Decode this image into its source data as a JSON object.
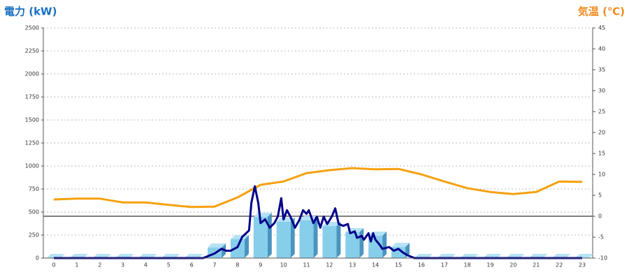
{
  "chart_data": {
    "type": "bar",
    "y_label": "電力 (kW)",
    "y2_label": "気温 (℃)",
    "y_label_color": "#1a6fc0",
    "y2_label_color": "#f08a1c",
    "categories": [
      "0",
      "1",
      "2",
      "3",
      "4",
      "5",
      "6",
      "7",
      "8",
      "9",
      "10",
      "11",
      "12",
      "13",
      "14",
      "15",
      "16",
      "17",
      "18",
      "19",
      "20",
      "21",
      "22",
      "23"
    ],
    "ylim": [
      0,
      2500
    ],
    "yticks": [
      0,
      250,
      500,
      750,
      1000,
      1250,
      1500,
      1750,
      2000,
      2250,
      2500
    ],
    "y2lim": [
      -10,
      45
    ],
    "y2ticks": [
      -10,
      -5,
      0,
      5,
      10,
      15,
      20,
      25,
      30,
      35,
      40,
      45
    ],
    "grid": true,
    "series": [
      {
        "type": "bar",
        "color": "#87ceeb",
        "values": [
          0,
          0,
          0,
          0,
          0,
          0,
          0,
          114,
          205,
          447,
          394,
          410,
          348,
          280,
          242,
          120,
          0,
          0,
          0,
          0,
          0,
          0,
          0,
          0
        ]
      },
      {
        "type": "line",
        "color": "#00008b",
        "x": [
          0,
          6.5,
          7,
          7.3,
          7.5,
          7.7,
          8,
          8.2,
          8.5,
          8.6,
          8.75,
          8.9,
          9,
          9.2,
          9.4,
          9.6,
          9.75,
          9.9,
          10,
          10.15,
          10.3,
          10.5,
          10.7,
          10.85,
          11,
          11.1,
          11.3,
          11.45,
          11.6,
          11.75,
          11.9,
          12.1,
          12.25,
          12.4,
          12.6,
          12.8,
          12.9,
          13.1,
          13.2,
          13.4,
          13.5,
          13.7,
          13.8,
          13.9,
          14,
          14.2,
          14.3,
          14.6,
          14.8,
          15,
          15.2,
          15.4,
          15.7,
          23
        ],
        "values": [
          0,
          0,
          50,
          100,
          80,
          80,
          120,
          230,
          300,
          600,
          780,
          600,
          380,
          420,
          330,
          380,
          450,
          650,
          420,
          520,
          450,
          330,
          420,
          520,
          480,
          520,
          380,
          450,
          330,
          450,
          370,
          450,
          540,
          370,
          350,
          370,
          270,
          290,
          220,
          240,
          200,
          270,
          180,
          270,
          200,
          140,
          100,
          120,
          80,
          100,
          60,
          30,
          0,
          0
        ]
      },
      {
        "type": "line",
        "axis": "y2",
        "color": "#f5a10f",
        "values": [
          4,
          4.2,
          4.2,
          3.3,
          3.3,
          2.7,
          2.2,
          2.3,
          4.5,
          7.5,
          8.3,
          10.3,
          11,
          11.5,
          11.2,
          11.3,
          10,
          8.3,
          6.7,
          5.8,
          5.3,
          5.8,
          8.3,
          8.2
        ]
      }
    ]
  }
}
